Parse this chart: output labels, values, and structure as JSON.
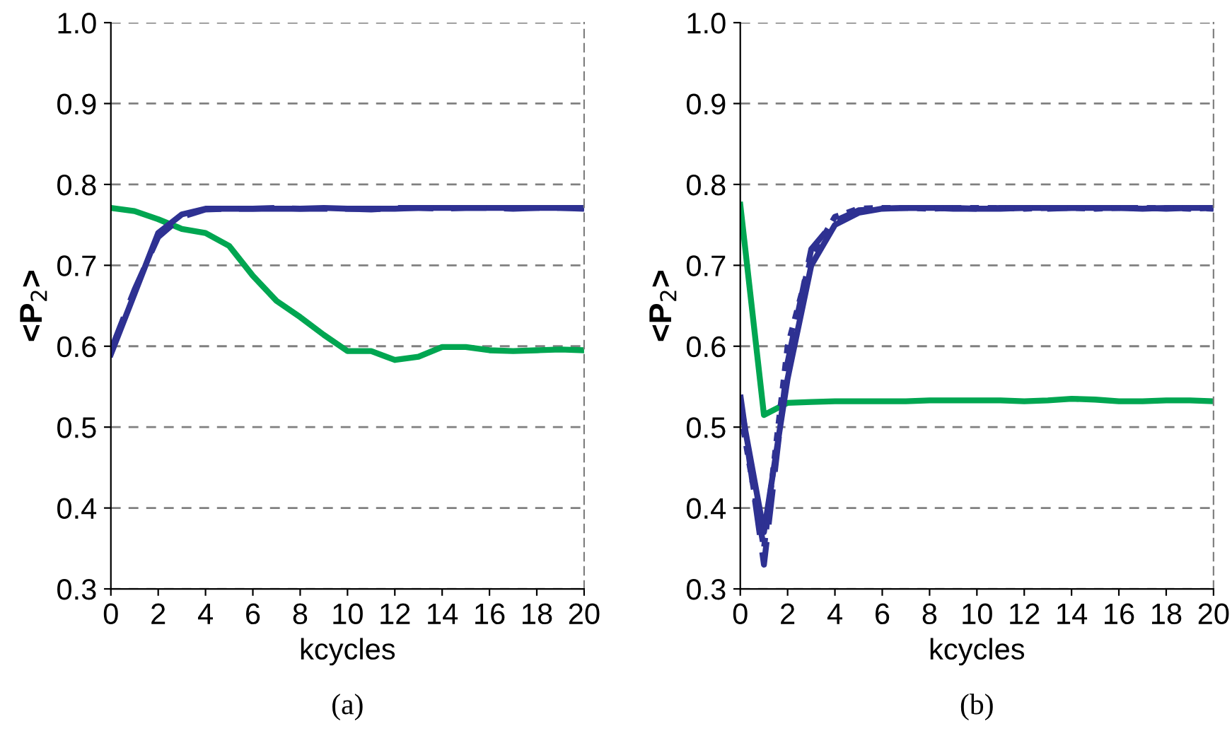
{
  "chart_data": [
    {
      "type": "line",
      "xlabel": "kcycles",
      "ylabel": "<P$_{2}$>",
      "annotations": [
        "(a)"
      ],
      "x": [
        0,
        1,
        2,
        3,
        4,
        5,
        6,
        7,
        8,
        9,
        10,
        11,
        12,
        13,
        14,
        15,
        16,
        17,
        18,
        19,
        20
      ],
      "xlim": [
        0,
        20
      ],
      "xticks": [
        0,
        2,
        4,
        6,
        8,
        10,
        12,
        14,
        16,
        18,
        20
      ],
      "ylim": [
        0.3,
        1.0
      ],
      "yticks": [
        {
          "value": 0.3,
          "label": "0.3"
        },
        {
          "value": 0.4,
          "label": "0.4"
        },
        {
          "value": 0.5,
          "label": "0.5"
        },
        {
          "value": 0.6,
          "label": "0.6"
        },
        {
          "value": 0.7,
          "label": "0.7"
        },
        {
          "value": 0.8,
          "label": "0.8"
        },
        {
          "value": 0.9,
          "label": "0.9"
        },
        {
          "value": 1.0,
          "label": "1.0"
        }
      ],
      "grid": "y",
      "legend": false,
      "series": [
        {
          "color": "#00a651",
          "line_style": "solid",
          "values": [
            0.771,
            0.767,
            0.757,
            0.745,
            0.74,
            0.724,
            0.687,
            0.656,
            0.636,
            0.614,
            0.594,
            0.594,
            0.583,
            0.587,
            0.599,
            0.599,
            0.595,
            0.594,
            0.595,
            0.596,
            0.595
          ]
        },
        {
          "color": "#2e3192",
          "line_style": "solid",
          "values": [
            0.59,
            0.665,
            0.74,
            0.763,
            0.77,
            0.77,
            0.77,
            0.77,
            0.77,
            0.771,
            0.77,
            0.77,
            0.77,
            0.771,
            0.771,
            0.771,
            0.771,
            0.771,
            0.771,
            0.771,
            0.771
          ]
        },
        {
          "color": "#2e3192",
          "line_style": "dashed",
          "values": [
            0.595,
            0.67,
            0.735,
            0.76,
            0.769,
            0.77,
            0.77,
            0.771,
            0.77,
            0.77,
            0.77,
            0.769,
            0.771,
            0.771,
            0.77,
            0.771,
            0.771,
            0.77,
            0.771,
            0.771,
            0.77
          ]
        }
      ]
    },
    {
      "type": "line",
      "xlabel": "kcycles",
      "ylabel": "<P$_{2}$>",
      "annotations": [
        "(b)"
      ],
      "x": [
        0,
        1,
        2,
        3,
        4,
        5,
        6,
        7,
        8,
        9,
        10,
        11,
        12,
        13,
        14,
        15,
        16,
        17,
        18,
        19,
        20
      ],
      "xlim": [
        0,
        20
      ],
      "xticks": [
        0,
        2,
        4,
        6,
        8,
        10,
        12,
        14,
        16,
        18,
        20
      ],
      "ylim": [
        0.3,
        1.0
      ],
      "yticks": [
        {
          "value": 0.3,
          "label": "0.3"
        },
        {
          "value": 0.4,
          "label": "0.4"
        },
        {
          "value": 0.5,
          "label": "0.5"
        },
        {
          "value": 0.6,
          "label": "0.6"
        },
        {
          "value": 0.7,
          "label": "0.7"
        },
        {
          "value": 0.8,
          "label": "0.8"
        },
        {
          "value": 0.9,
          "label": "0.9"
        },
        {
          "value": 1.0,
          "label": "1.0"
        }
      ],
      "grid": "y",
      "legend": false,
      "series": [
        {
          "color": "#00a651",
          "line_style": "solid",
          "values": [
            0.775,
            0.515,
            0.53,
            0.531,
            0.532,
            0.532,
            0.532,
            0.532,
            0.533,
            0.533,
            0.533,
            0.533,
            0.532,
            0.533,
            0.535,
            0.534,
            0.532,
            0.532,
            0.533,
            0.533,
            0.532
          ]
        },
        {
          "color": "#2e3192",
          "line_style": "solid",
          "values": [
            0.53,
            0.37,
            0.56,
            0.7,
            0.75,
            0.765,
            0.77,
            0.771,
            0.771,
            0.771,
            0.77,
            0.77,
            0.771,
            0.771,
            0.771,
            0.771,
            0.771,
            0.77,
            0.771,
            0.771,
            0.771
          ]
        },
        {
          "color": "#2e3192",
          "line_style": "dashed",
          "values": [
            0.54,
            0.33,
            0.58,
            0.72,
            0.755,
            0.768,
            0.77,
            0.771,
            0.771,
            0.77,
            0.77,
            0.771,
            0.771,
            0.77,
            0.771,
            0.771,
            0.771,
            0.771,
            0.77,
            0.771,
            0.77
          ]
        },
        {
          "color": "#2e3192",
          "line_style": "dotted",
          "values": [
            0.52,
            0.35,
            0.6,
            0.71,
            0.76,
            0.77,
            0.771,
            0.771,
            0.77,
            0.771,
            0.771,
            0.771,
            0.77,
            0.771,
            0.771,
            0.77,
            0.771,
            0.771,
            0.771,
            0.77,
            0.771
          ]
        }
      ]
    }
  ]
}
